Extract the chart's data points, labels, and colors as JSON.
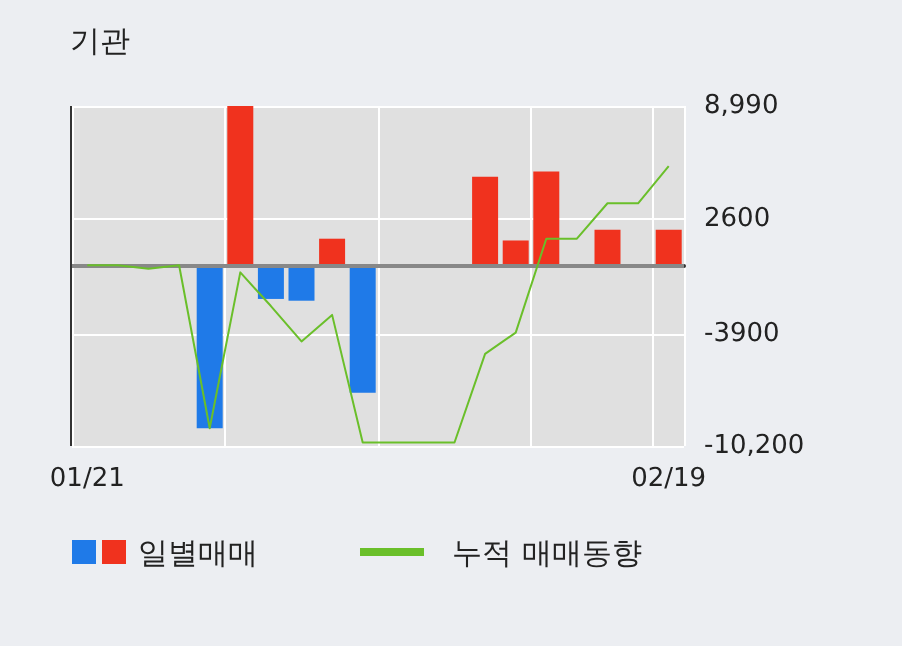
{
  "chart_data": {
    "type": "bar",
    "title": "기관",
    "categories": [
      "01/21",
      null,
      null,
      null,
      null,
      null,
      null,
      null,
      null,
      null,
      null,
      null,
      null,
      null,
      null,
      null,
      null,
      null,
      null,
      "02/19"
    ],
    "series": [
      {
        "name": "일별매매",
        "colors": [
          "#f0321e",
          "#f0321e",
          "#f0321e",
          "#f0321e",
          "#1f7ae8",
          "#f0321e",
          "#1f7ae8",
          "#1f7ae8",
          "#f0321e",
          "#1f7ae8",
          "#f0321e",
          "#f0321e",
          "#f0321e",
          "#f0321e",
          "#f0321e",
          "#f0321e",
          "#f0321e",
          "#f0321e",
          "#f0321e",
          "#f0321e"
        ],
        "values": [
          null,
          null,
          null,
          null,
          -9200,
          8990,
          -1900,
          -2000,
          1500,
          -7200,
          null,
          null,
          null,
          5000,
          1400,
          5300,
          null,
          2000,
          null,
          2000
        ]
      },
      {
        "name": "누적 매매동향",
        "type": "line",
        "color": "#6abf2a",
        "values": [
          0,
          0,
          -200,
          0,
          -9200,
          -400,
          -2300,
          -4300,
          -2800,
          -10000,
          -10000,
          -10000,
          -10000,
          -5000,
          -3800,
          1500,
          1500,
          3500,
          3500,
          5600
        ]
      }
    ],
    "ylim": [
      -10200,
      8990
    ],
    "yticks": [
      {
        "value": 8990,
        "label": "8,990"
      },
      2600,
      -3900,
      {
        "value": -10200,
        "label": "-10,200"
      }
    ],
    "ref_lines": [
      {
        "axis": "y",
        "value": 0,
        "color": "#888888"
      }
    ],
    "grid": true,
    "legend": "bottom",
    "marker": "none",
    "line_style": "solid"
  }
}
